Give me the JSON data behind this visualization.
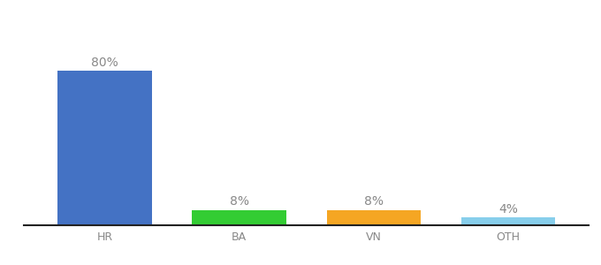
{
  "categories": [
    "HR",
    "BA",
    "VN",
    "OTH"
  ],
  "values": [
    80,
    8,
    8,
    4
  ],
  "bar_colors": [
    "#4472c4",
    "#33cc33",
    "#f5a623",
    "#87ceeb"
  ],
  "labels": [
    "80%",
    "8%",
    "8%",
    "4%"
  ],
  "ylim": [
    0,
    92
  ],
  "background_color": "#ffffff",
  "label_color": "#888888",
  "label_fontsize": 10,
  "tick_fontsize": 9,
  "bar_width": 0.7
}
